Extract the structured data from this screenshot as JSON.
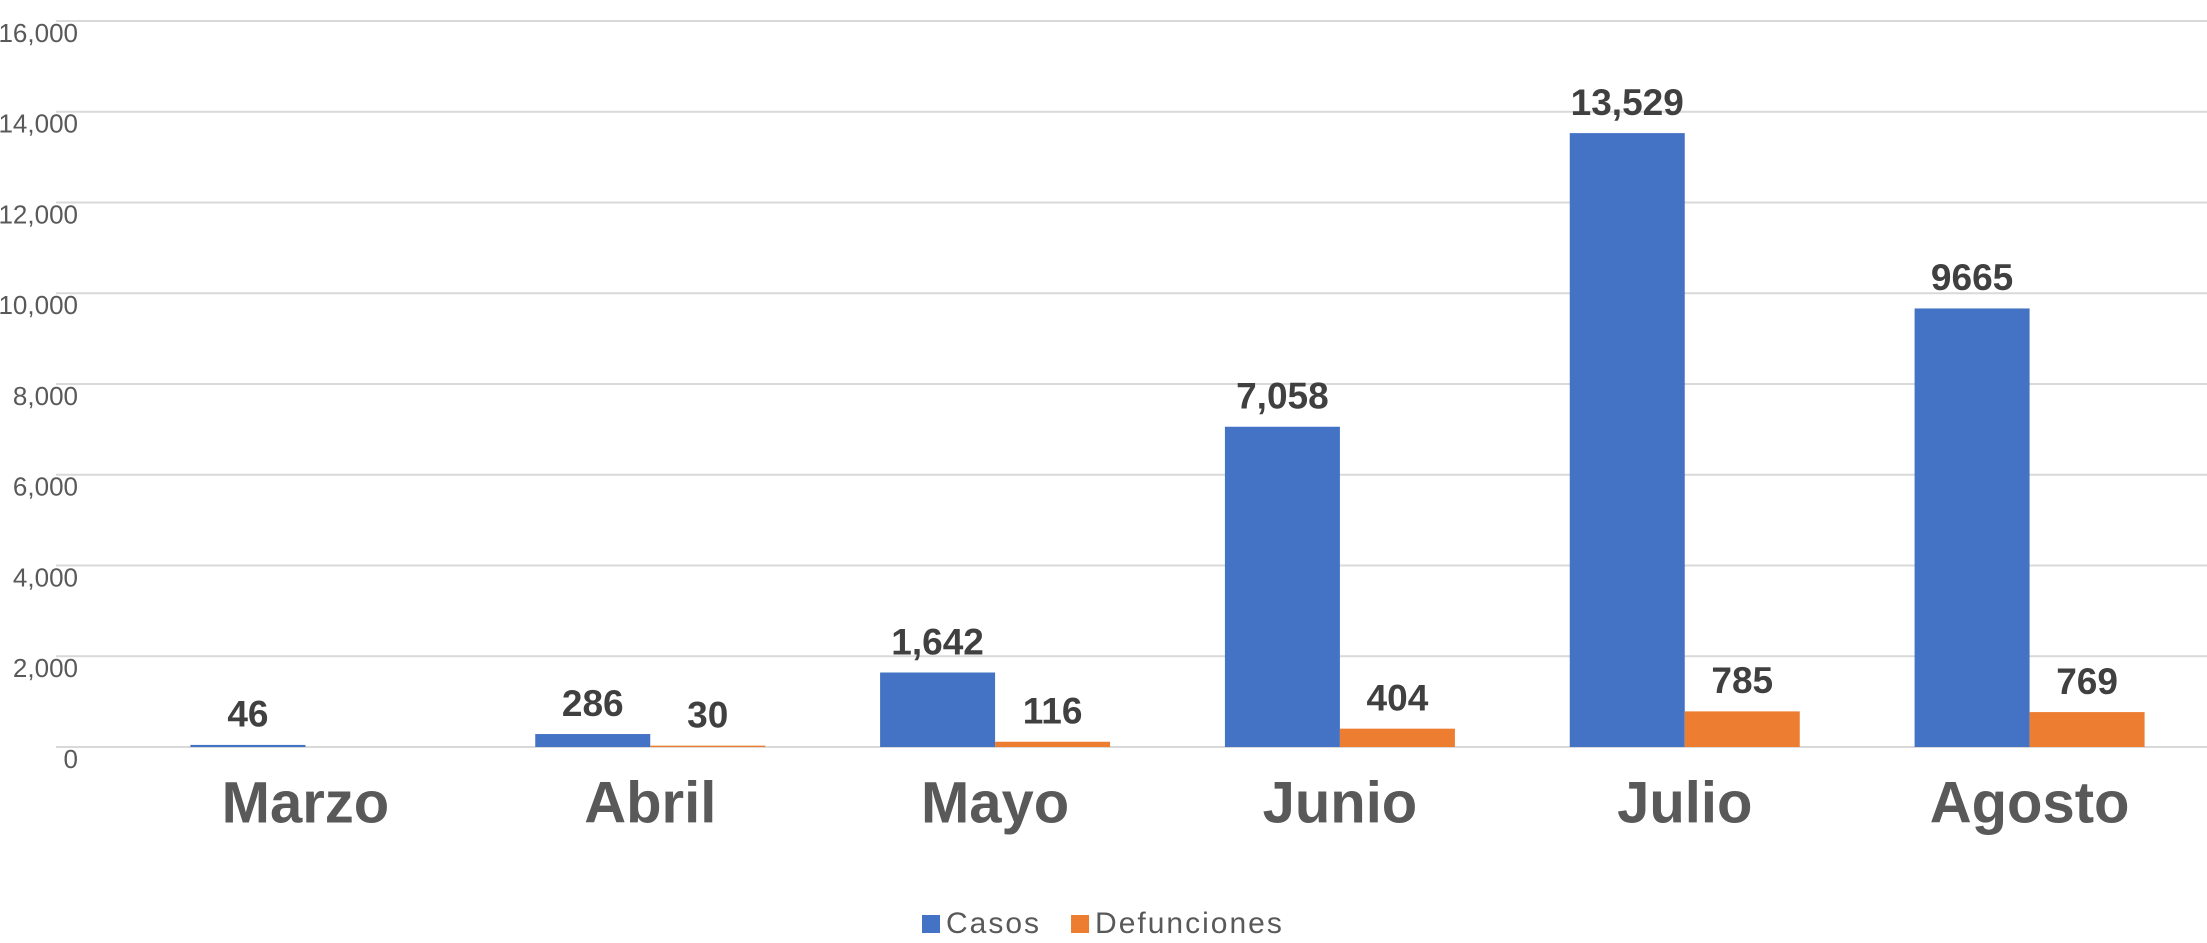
{
  "chart_data": {
    "type": "bar",
    "categories": [
      "Marzo",
      "Abril",
      "Mayo",
      "Junio",
      "Julio",
      "Agosto"
    ],
    "series": [
      {
        "name": "Casos",
        "color": "#4472c4",
        "values": [
          46,
          286,
          1642,
          7058,
          13529,
          9665
        ],
        "value_labels": [
          "46",
          "286",
          "1,642",
          "7,058",
          "13,529",
          "9665"
        ]
      },
      {
        "name": "Defunciones",
        "color": "#ed7d31",
        "values": [
          null,
          30,
          116,
          404,
          785,
          769
        ],
        "value_labels": [
          null,
          "30",
          "116",
          "404",
          "785",
          "769"
        ]
      }
    ],
    "ylim": [
      0,
      16000
    ],
    "yticks": [
      0,
      {
        "value": 2000,
        "label": "2,000"
      },
      {
        "value": 4000,
        "label": "4,000"
      },
      {
        "value": 6000,
        "label": "6,000"
      },
      {
        "value": 8000,
        "label": "8,000"
      },
      {
        "value": 10000,
        "label": "10,000"
      },
      {
        "value": 12000,
        "label": "12,000"
      },
      {
        "value": 14000,
        "label": "14,000"
      },
      {
        "value": 16000,
        "label": "16,000"
      }
    ],
    "grid": true,
    "legend": "bottom"
  }
}
